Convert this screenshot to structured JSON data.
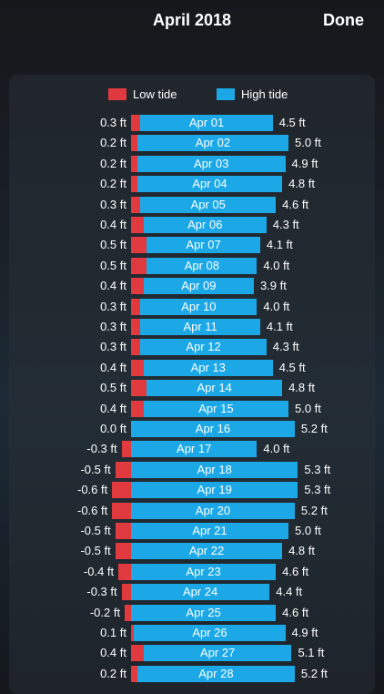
{
  "header": {
    "title": "April 2018",
    "done_label": "Done"
  },
  "legend": [
    {
      "label": "Low tide",
      "color": "#e03a3e"
    },
    {
      "label": "High tide",
      "color": "#1ca8e6"
    }
  ],
  "chart_data": {
    "type": "bar",
    "orientation": "horizontal",
    "unit": "ft",
    "categories": [
      "Apr 01",
      "Apr 02",
      "Apr 03",
      "Apr 04",
      "Apr 05",
      "Apr 06",
      "Apr 07",
      "Apr 08",
      "Apr 09",
      "Apr 10",
      "Apr 11",
      "Apr 12",
      "Apr 13",
      "Apr 14",
      "Apr 15",
      "Apr 16",
      "Apr 17",
      "Apr 18",
      "Apr 19",
      "Apr 20",
      "Apr 21",
      "Apr 22",
      "Apr 23",
      "Apr 24",
      "Apr 25",
      "Apr 26",
      "Apr 27",
      "Apr 28"
    ],
    "series": [
      {
        "name": "Low tide",
        "color": "#e03a3e",
        "values": [
          0.3,
          0.2,
          0.2,
          0.2,
          0.3,
          0.4,
          0.5,
          0.5,
          0.4,
          0.3,
          0.3,
          0.3,
          0.4,
          0.5,
          0.4,
          0.0,
          -0.3,
          -0.5,
          -0.6,
          -0.6,
          -0.5,
          -0.5,
          -0.4,
          -0.3,
          -0.2,
          0.1,
          0.4,
          0.2
        ],
        "labels": [
          "0.3 ft",
          "0.2 ft",
          "0.2 ft",
          "0.2 ft",
          "0.3 ft",
          "0.4 ft",
          "0.5 ft",
          "0.5 ft",
          "0.4 ft",
          "0.3 ft",
          "0.3 ft",
          "0.3 ft",
          "0.4 ft",
          "0.5 ft",
          "0.4 ft",
          "0.0 ft",
          "-0.3 ft",
          "-0.5 ft",
          "-0.6 ft",
          "-0.6 ft",
          "-0.5 ft",
          "-0.5 ft",
          "-0.4 ft",
          "-0.3 ft",
          "-0.2 ft",
          "0.1 ft",
          "0.4 ft",
          "0.2 ft"
        ]
      },
      {
        "name": "High tide",
        "color": "#1ca8e6",
        "values": [
          4.5,
          5.0,
          4.9,
          4.8,
          4.6,
          4.3,
          4.1,
          4.0,
          3.9,
          4.0,
          4.1,
          4.3,
          4.5,
          4.8,
          5.0,
          5.2,
          4.0,
          5.3,
          5.3,
          5.2,
          5.0,
          4.8,
          4.6,
          4.4,
          4.6,
          4.9,
          5.1,
          5.2
        ],
        "labels": [
          "4.5 ft",
          "5.0 ft",
          "4.9 ft",
          "4.8 ft",
          "4.6 ft",
          "4.3 ft",
          "4.1 ft",
          "4.0 ft",
          "3.9 ft",
          "4.0 ft",
          "4.1 ft",
          "4.3 ft",
          "4.5 ft",
          "4.8 ft",
          "5.0 ft",
          "5.2 ft",
          "4.0 ft",
          "5.3 ft",
          "5.3 ft",
          "5.2 ft",
          "5.0 ft",
          "4.8 ft",
          "4.6 ft",
          "4.4 ft",
          "4.6 ft",
          "4.9 ft",
          "5.1 ft",
          "5.2 ft"
        ]
      }
    ]
  }
}
